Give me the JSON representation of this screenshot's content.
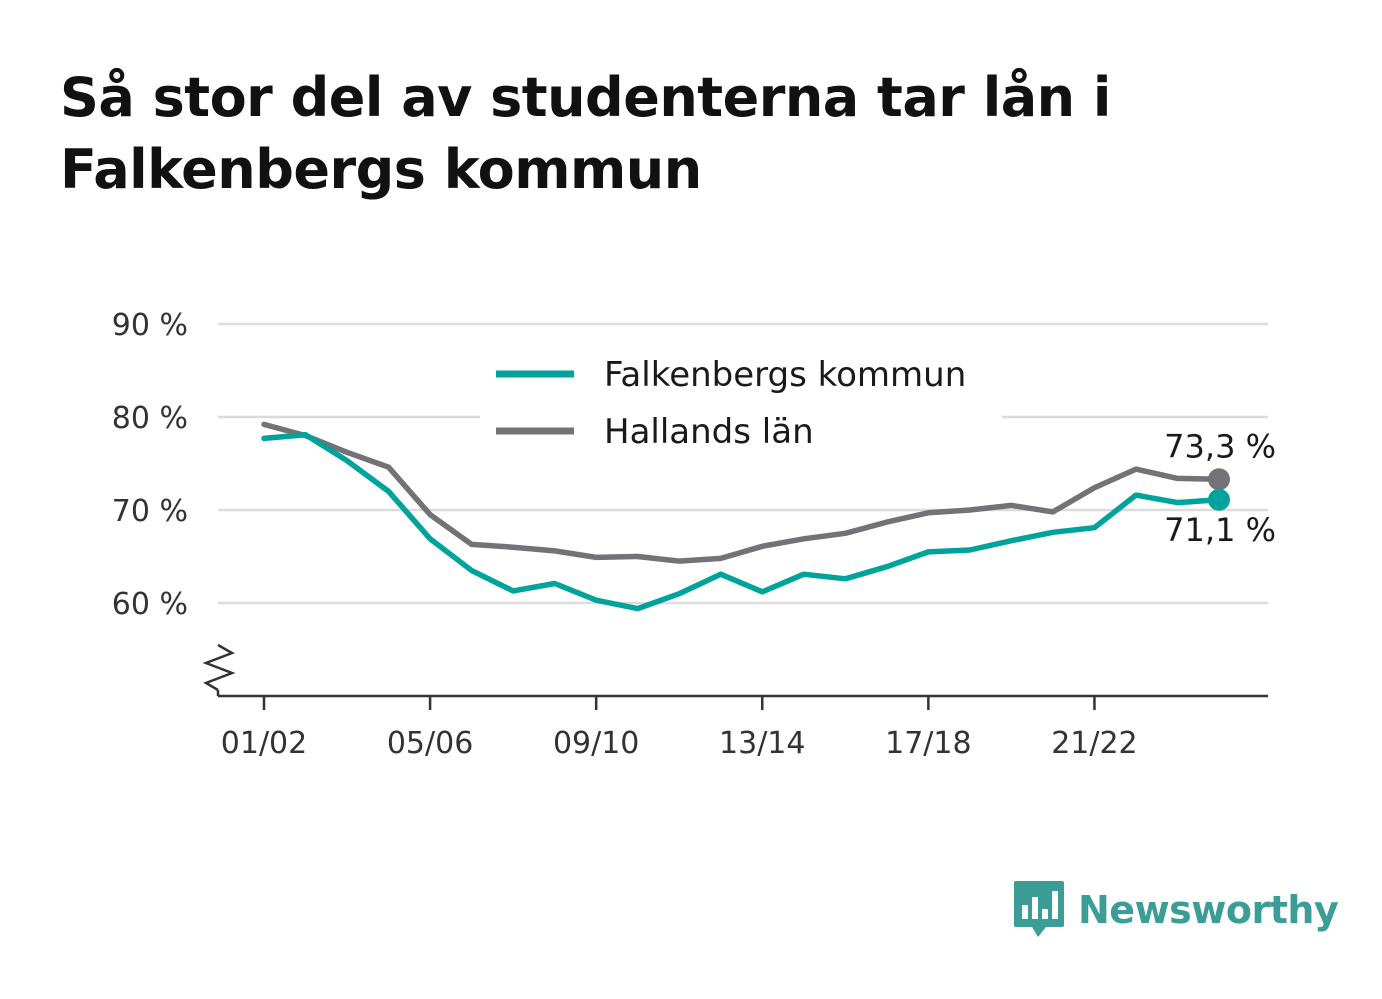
{
  "title": "Så stor del av studenterna tar lån i Falkenbergs kommun",
  "brand": {
    "name": "Newsworthy",
    "color": "#3a9d96",
    "icon": "newsworthy-bar-chart-icon"
  },
  "chart_data": {
    "type": "line",
    "title": "Så stor del av studenterna tar lån i Falkenbergs kommun",
    "xlabel": "",
    "ylabel": "",
    "ylim": [
      50,
      90
    ],
    "y_ticks": [
      60,
      70,
      80,
      90
    ],
    "y_tick_labels": [
      "60 %",
      "70 %",
      "80 %",
      "90 %"
    ],
    "y_axis_break": true,
    "grid": true,
    "legend_position": "top-center",
    "categories": [
      "01/02",
      "02/03",
      "03/04",
      "04/05",
      "05/06",
      "06/07",
      "07/08",
      "08/09",
      "09/10",
      "10/11",
      "11/12",
      "12/13",
      "13/14",
      "14/15",
      "15/16",
      "16/17",
      "17/18",
      "18/19",
      "19/20",
      "20/21",
      "21/22",
      "22/23",
      "23/24",
      "24/25"
    ],
    "x_tick_labels": [
      "01/02",
      "05/06",
      "09/10",
      "13/14",
      "17/18",
      "21/22"
    ],
    "series": [
      {
        "name": "Falkenbergs kommun",
        "color": "#00a39b",
        "values": [
          77.7,
          78.1,
          75.3,
          72.0,
          66.9,
          63.5,
          61.3,
          62.1,
          60.3,
          59.4,
          61.0,
          63.1,
          61.2,
          63.1,
          62.6,
          63.9,
          65.5,
          65.7,
          66.7,
          67.6,
          68.1,
          71.6,
          70.8,
          71.1
        ],
        "end_label": "71,1 %"
      },
      {
        "name": "Hallands län",
        "color": "#737277",
        "values": [
          79.2,
          78.0,
          76.2,
          74.6,
          69.5,
          66.3,
          66.0,
          65.6,
          64.9,
          65.0,
          64.5,
          64.8,
          66.1,
          66.9,
          67.5,
          68.7,
          69.7,
          70.0,
          70.5,
          69.8,
          72.4,
          74.4,
          73.4,
          73.3
        ],
        "end_label": "73,3 %"
      }
    ]
  }
}
